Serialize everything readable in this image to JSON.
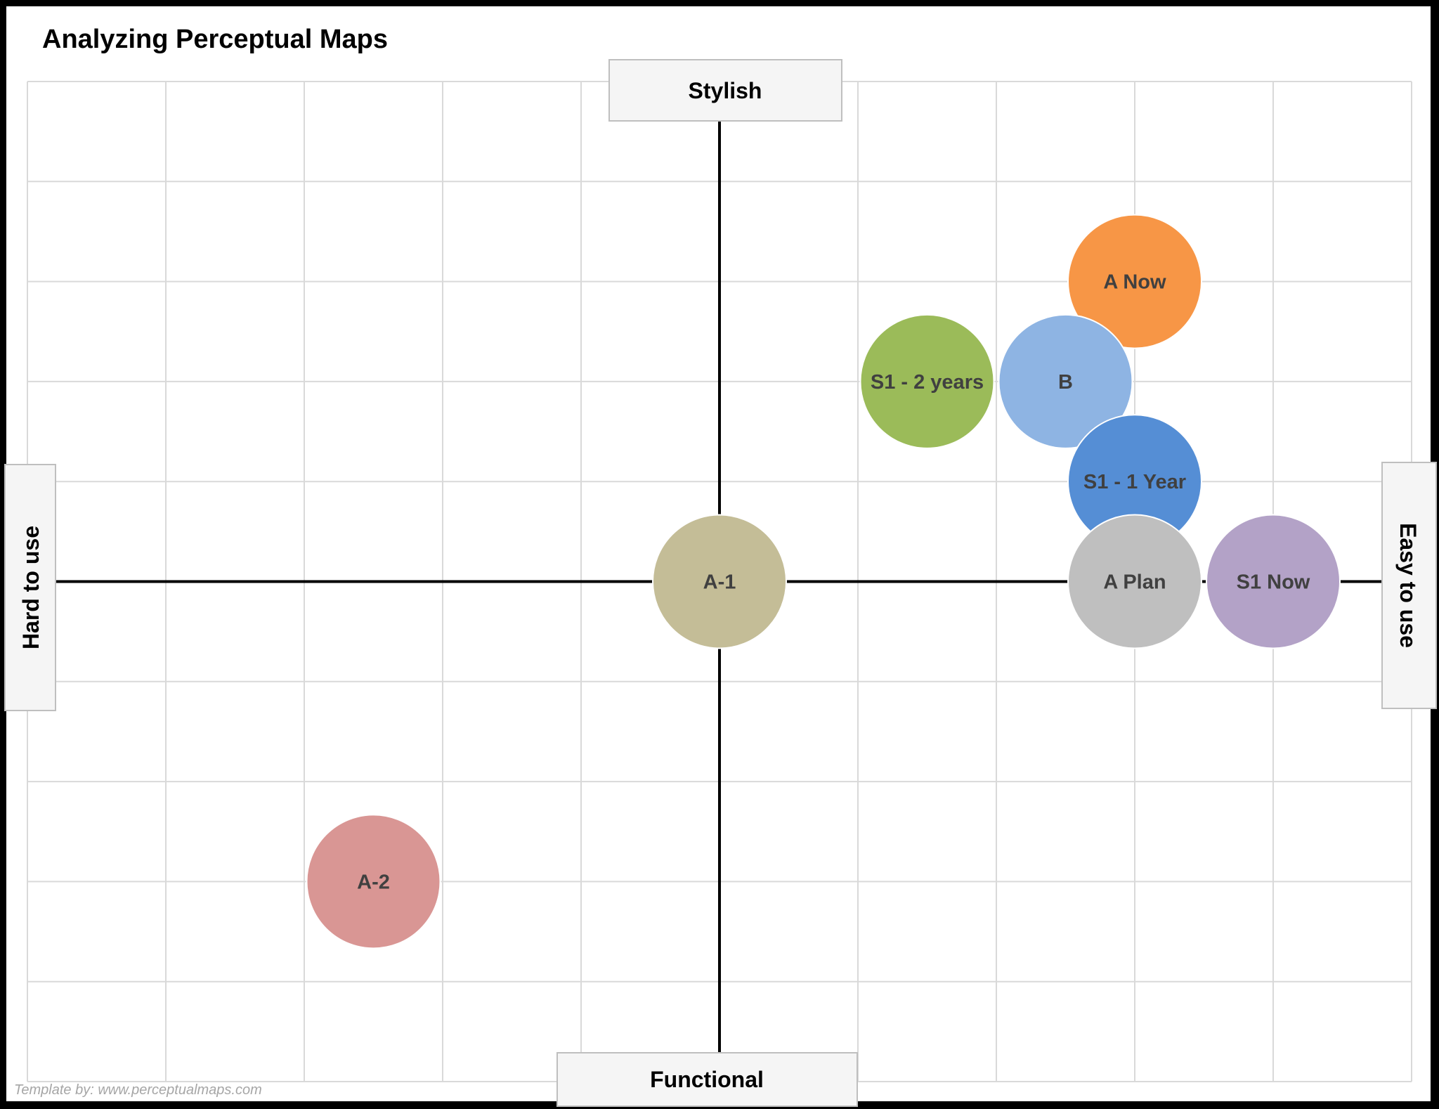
{
  "chart_data": {
    "type": "scatter",
    "title": "Analyzing Perceptual Maps",
    "xlim": [
      -5,
      5
    ],
    "ylim": [
      -5,
      5
    ],
    "grid": true,
    "axis_labels": {
      "top": "Stylish",
      "bottom": "Functional",
      "left": "Hard to use",
      "right": "Easy to use"
    },
    "points": [
      {
        "label": "A Now",
        "x": 3,
        "y": 3,
        "color": "#F79646"
      },
      {
        "label": "S1 - 2 years",
        "x": 1.5,
        "y": 2,
        "color": "#9BBB59"
      },
      {
        "label": "B",
        "x": 2.5,
        "y": 2,
        "color": "#8EB4E3"
      },
      {
        "label": "S1 - 1 Year",
        "x": 3,
        "y": 1,
        "color": "#558ED5"
      },
      {
        "label": "A-1",
        "x": 0,
        "y": 0,
        "color": "#C4BD97"
      },
      {
        "label": "A Plan",
        "x": 3,
        "y": 0,
        "color": "#BFBFBF"
      },
      {
        "label": "S1 Now",
        "x": 4,
        "y": 0,
        "color": "#B3A2C7"
      },
      {
        "label": "A-2",
        "x": -2.5,
        "y": -3,
        "color": "#D99694"
      }
    ]
  },
  "footer": "Template by: www.perceptualmaps.com"
}
